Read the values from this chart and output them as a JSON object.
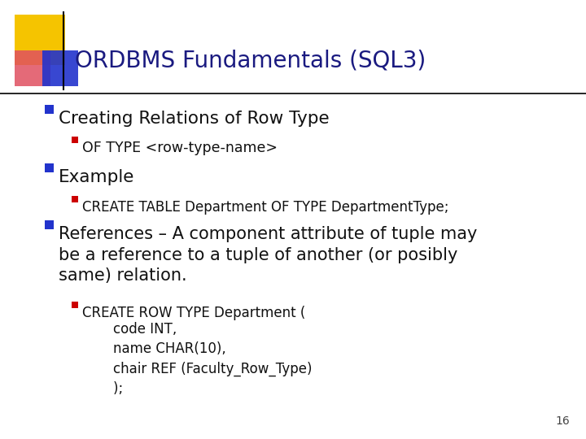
{
  "title": "ORDBMS Fundamentals (SQL3)",
  "title_color": "#1a1a80",
  "title_fontsize": 20,
  "bg_color": "#ffffff",
  "slide_number": "16",
  "accent_yellow": "#f5c400",
  "accent_red": "#e05060",
  "accent_blue": "#2233cc",
  "bullet1_color": "#2233cc",
  "bullet2_color": "#cc0000",
  "text_color": "#111111",
  "line1": {
    "level": 1,
    "text": "Creating Relations of Row Type",
    "fontsize": 15.5
  },
  "line2": {
    "level": 2,
    "text": "OF TYPE <row-type-name>",
    "fontsize": 12.5
  },
  "line3": {
    "level": 1,
    "text": "Example",
    "fontsize": 15.5
  },
  "line4": {
    "level": 2,
    "text": "CREATE TABLE Department OF TYPE DepartmentType;",
    "fontsize": 12
  },
  "line5": {
    "level": 1,
    "text": "References – A component attribute of tuple may\nbe a reference to a tuple of another (or posibly\nsame) relation.",
    "fontsize": 15
  },
  "line6_first": {
    "level": 2,
    "text": "CREATE ROW TYPE Department (",
    "fontsize": 12
  },
  "line6_rest": {
    "text": "    code INT,\n    name CHAR(10),\n    chair REF (Faculty_Row_Type)\n    );",
    "fontsize": 12
  }
}
